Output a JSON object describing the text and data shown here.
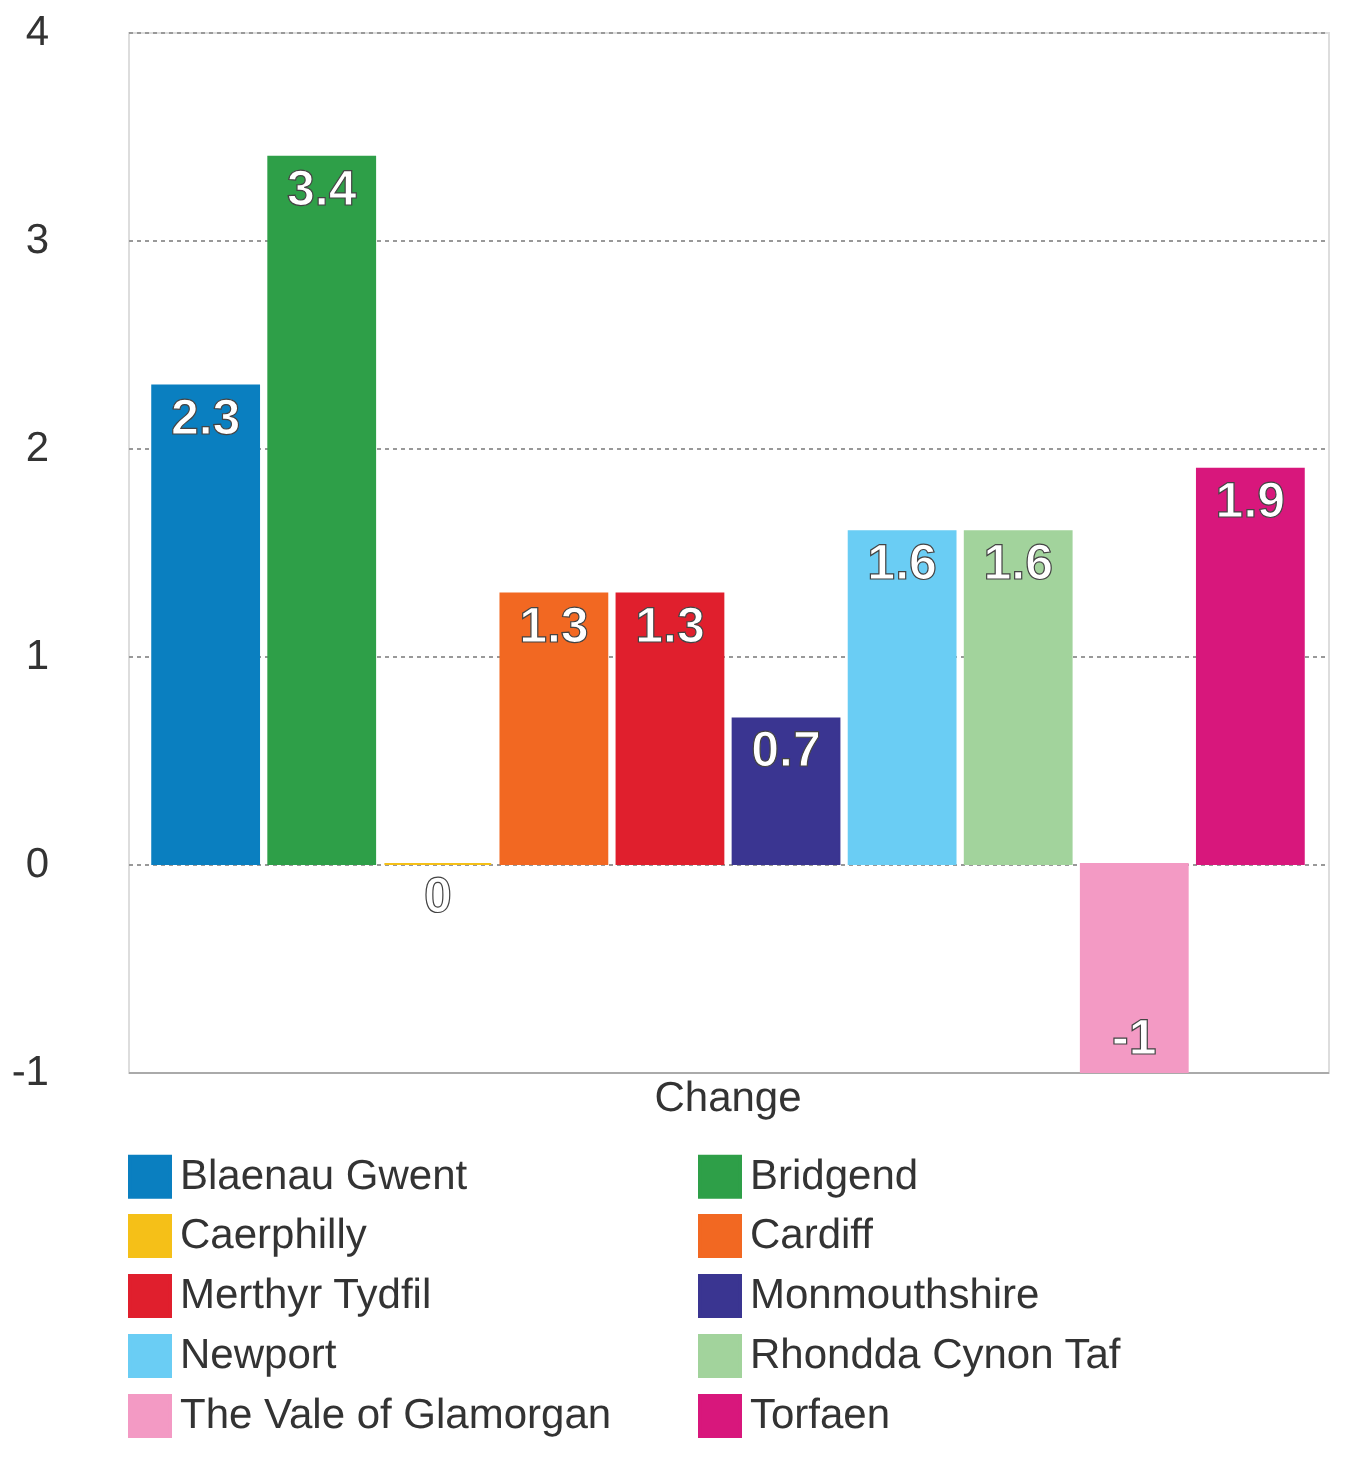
{
  "chart_data": {
    "type": "bar",
    "categories": [
      "Change"
    ],
    "series": [
      {
        "name": "Blaenau Gwent",
        "color": "#0a7fc0",
        "values": [
          2.3
        ]
      },
      {
        "name": "Bridgend",
        "color": "#2e9f48",
        "values": [
          3.4
        ]
      },
      {
        "name": "Caerphilly",
        "color": "#f5c018",
        "values": [
          0
        ]
      },
      {
        "name": "Cardiff",
        "color": "#f26822",
        "values": [
          1.3
        ]
      },
      {
        "name": "Merthyr Tydfil",
        "color": "#e01f2d",
        "values": [
          1.3
        ]
      },
      {
        "name": "Monmouthshire",
        "color": "#3a3591",
        "values": [
          0.7
        ]
      },
      {
        "name": "Newport",
        "color": "#6acdf4",
        "values": [
          1.6
        ]
      },
      {
        "name": "Rhondda Cynon Taf",
        "color": "#a2d39c",
        "values": [
          1.6
        ]
      },
      {
        "name": "The Vale of Glamorgan",
        "color": "#f39ac4",
        "values": [
          -1
        ]
      },
      {
        "name": "Torfaen",
        "color": "#d8177c",
        "values": [
          1.9
        ]
      }
    ],
    "ylim": [
      -1,
      4
    ],
    "yticks": [
      -1,
      0,
      1,
      2,
      3,
      4
    ],
    "grid": "y",
    "legend": "bottom",
    "data_labels": true
  }
}
